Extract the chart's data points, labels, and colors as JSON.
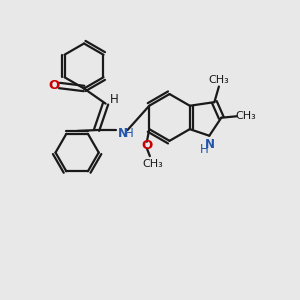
{
  "bg_color": "#e8e8e8",
  "bond_color": "#1a1a1a",
  "oxygen_color": "#cc0000",
  "nitrogen_color": "#2255aa",
  "text_color": "#1a1a1a",
  "line_width": 1.6,
  "font_size": 8.5,
  "xlim": [
    0,
    10
  ],
  "ylim": [
    0,
    10
  ]
}
